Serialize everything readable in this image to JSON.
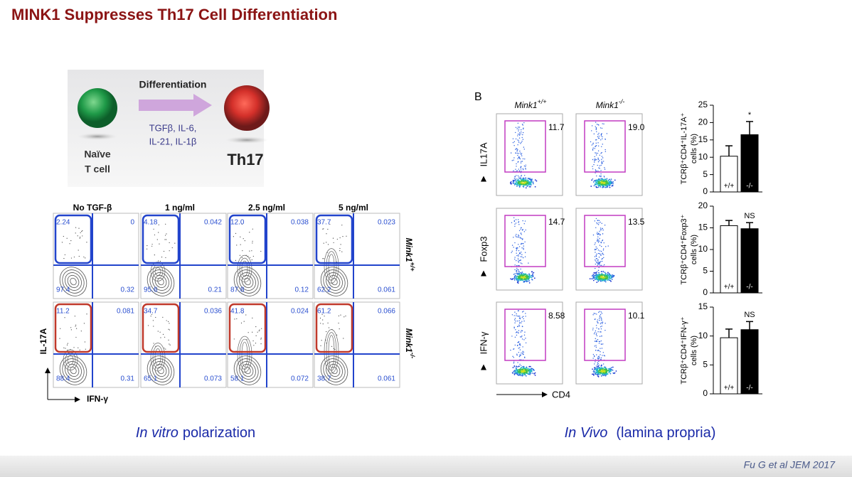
{
  "title": "MINK1 Suppresses Th17 Cell Differentiation",
  "schematic": {
    "naive": [
      "Naïve",
      "T cell"
    ],
    "arrow_label": "Differentiation",
    "cytokines": [
      "TGFβ, IL-6,",
      "IL-21, IL-1β"
    ],
    "product": "Th17"
  },
  "panel_a": {
    "columns": [
      "No TGF-β",
      "1 ng/ml",
      "2.5 ng/ml",
      "5 ng/ml"
    ],
    "y_axis": "IL-17A",
    "x_axis": "IFN-γ",
    "rows": [
      {
        "gene": "Mink1",
        "genotype": "+/+",
        "cells": [
          [
            "2.24",
            "0",
            "97.4",
            "0.32"
          ],
          [
            "4.18",
            "0.042",
            "95.6",
            "0.21"
          ],
          [
            "12.0",
            "0.038",
            "87.8",
            "0.12"
          ],
          [
            "37.7",
            "0.023",
            "62.2",
            "0.061"
          ]
        ]
      },
      {
        "gene": "Mink1",
        "genotype": "-/-",
        "cells": [
          [
            "11.2",
            "0.081",
            "88.4",
            "0.31"
          ],
          [
            "34.7",
            "0.036",
            "65.1",
            "0.073"
          ],
          [
            "41.8",
            "0.024",
            "58.1",
            "0.072"
          ],
          [
            "61.2",
            "0.066",
            "38.7",
            "0.061"
          ]
        ]
      }
    ],
    "caption": {
      "italic": "In vitro",
      "rest": "polarization"
    }
  },
  "panel_b": {
    "label": "B",
    "columns": [
      {
        "gene": "Mink1",
        "genotype": "+/+"
      },
      {
        "gene": "Mink1",
        "genotype": "-/-"
      }
    ],
    "rows": [
      {
        "marker": "IL17A",
        "values": [
          "11.7",
          "19.0"
        ]
      },
      {
        "marker": "Foxp3",
        "values": [
          "14.7",
          "13.5"
        ]
      },
      {
        "marker": "IFN-γ",
        "values": [
          "8.58",
          "10.1"
        ]
      }
    ],
    "x_axis": "CD4",
    "caption": {
      "italic": "In Vivo",
      "rest": "(lamina propria)"
    }
  },
  "chart_data": [
    {
      "type": "bar",
      "ylabel": [
        "TCRβ⁺CD4⁺IL-17A⁺",
        "cells (%)"
      ],
      "categories": [
        "+/+",
        "-/-"
      ],
      "values": [
        10.3,
        16.5
      ],
      "errors": [
        3.0,
        3.8
      ],
      "colors": [
        "#ffffff",
        "#000000"
      ],
      "annotation": "*",
      "ylim": [
        0,
        25
      ],
      "yticks": [
        0,
        5,
        10,
        15,
        20,
        25
      ]
    },
    {
      "type": "bar",
      "ylabel": [
        "TCRβ⁺CD4⁺Foxp3⁺",
        "cells (%)"
      ],
      "categories": [
        "+/+",
        "-/-"
      ],
      "values": [
        15.5,
        14.8
      ],
      "errors": [
        1.2,
        1.4
      ],
      "colors": [
        "#ffffff",
        "#000000"
      ],
      "annotation": "NS",
      "ylim": [
        0,
        20
      ],
      "yticks": [
        0,
        5,
        10,
        15,
        20
      ]
    },
    {
      "type": "bar",
      "ylabel": [
        "TCRβ⁺CD4⁺IFN-γ⁺",
        "cells (%)"
      ],
      "categories": [
        "+/+",
        "-/-"
      ],
      "values": [
        9.7,
        11.1
      ],
      "errors": [
        1.5,
        1.4
      ],
      "colors": [
        "#ffffff",
        "#000000"
      ],
      "annotation": "NS",
      "ylim": [
        0,
        15
      ],
      "yticks": [
        0,
        5,
        10,
        15
      ]
    }
  ],
  "citation": "Fu G et al JEM 2017"
}
